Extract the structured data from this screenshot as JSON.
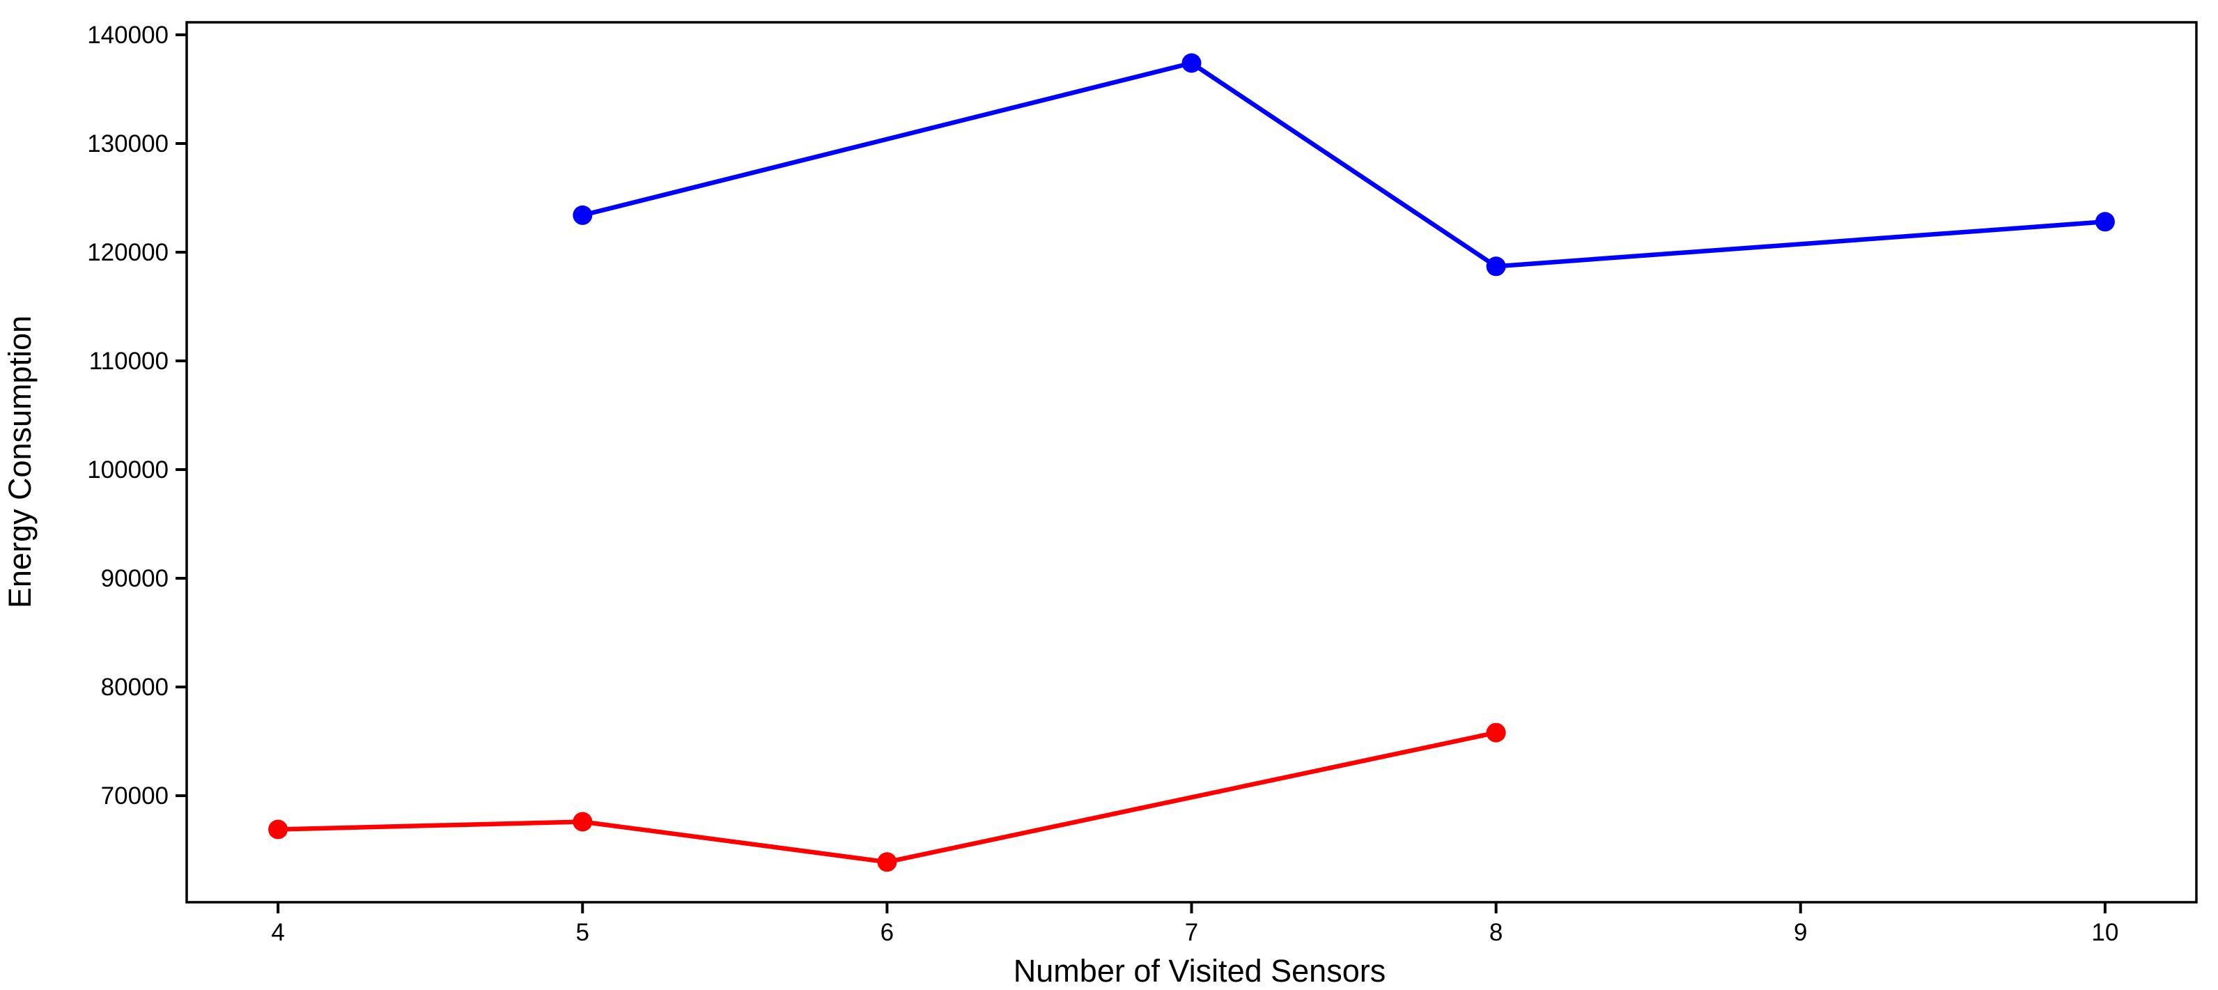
{
  "chart_data": {
    "type": "line",
    "title": "",
    "xlabel": "Number of Visited Sensors",
    "ylabel": "Energy Consumption",
    "xlim": [
      3.7,
      10.3
    ],
    "ylim": [
      60200,
      141150
    ],
    "x_ticks": [
      4,
      5,
      6,
      7,
      8,
      9,
      10
    ],
    "y_ticks": [
      70000,
      80000,
      90000,
      100000,
      110000,
      120000,
      130000,
      140000
    ],
    "grid": false,
    "legend": "none",
    "series": [
      {
        "name": "blue-series",
        "color": "#0000FF",
        "marker": "circle",
        "points": [
          [
            5,
            123400
          ],
          [
            7,
            137400
          ],
          [
            8,
            118700
          ],
          [
            10,
            122800
          ]
        ]
      },
      {
        "name": "red-series",
        "color": "#FF0000",
        "marker": "circle",
        "points": [
          [
            4,
            66900
          ],
          [
            5,
            67600
          ],
          [
            6,
            63900
          ],
          [
            8,
            75800
          ]
        ]
      }
    ],
    "colors": {
      "spine": "#000000",
      "tick": "#000000",
      "text": "#000000",
      "background": "#FFFFFF"
    }
  }
}
